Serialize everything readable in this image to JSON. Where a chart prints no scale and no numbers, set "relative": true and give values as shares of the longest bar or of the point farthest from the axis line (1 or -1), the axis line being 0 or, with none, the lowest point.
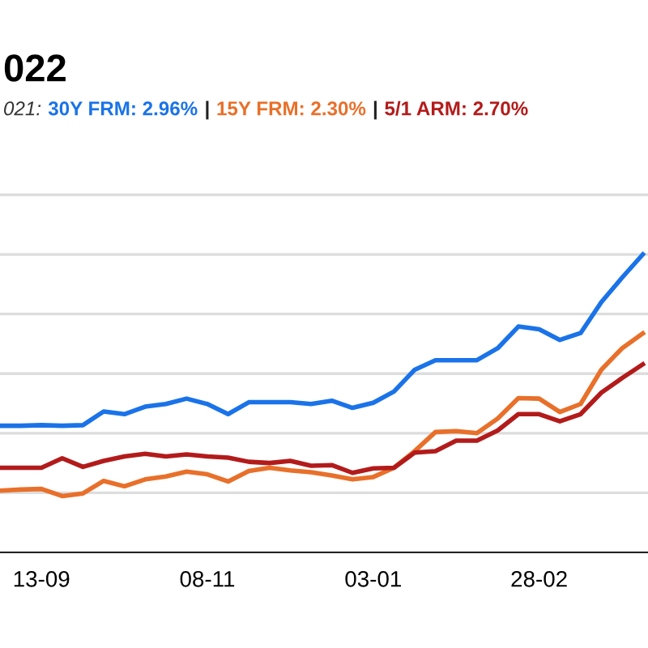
{
  "chart_data": {
    "type": "line",
    "title": "022",
    "subtitle": "021:",
    "categories": [
      null,
      null,
      "13-09",
      null,
      null,
      null,
      null,
      null,
      null,
      null,
      "08-11",
      null,
      null,
      null,
      null,
      null,
      null,
      null,
      "03-01",
      null,
      null,
      null,
      null,
      null,
      null,
      null,
      "28-02",
      null,
      null,
      null,
      null,
      null
    ],
    "annotations": [
      "|",
      "|"
    ],
    "relative": true,
    "grid": "y",
    "legend": "top",
    "marker": "none",
    "line_style": "solid",
    "series": [
      {
        "name": "30Y FRM: 2.96%",
        "color": "#1a73e8",
        "values": [
          0.425,
          0.425,
          0.427,
          0.425,
          0.427,
          0.473,
          0.464,
          0.489,
          0.498,
          0.516,
          0.498,
          0.464,
          0.504,
          0.504,
          0.504,
          0.498,
          0.509,
          0.485,
          0.502,
          0.54,
          0.613,
          0.645,
          0.645,
          0.645,
          0.685,
          0.758,
          0.749,
          0.713,
          0.736,
          0.84,
          0.922,
          1
        ]
      },
      {
        "name": "15Y FRM: 2.30%",
        "color": "#e8702a",
        "values": [
          0.207,
          0.211,
          0.213,
          0.189,
          0.198,
          0.24,
          0.222,
          0.245,
          0.255,
          0.271,
          0.262,
          0.238,
          0.273,
          0.284,
          0.275,
          0.269,
          0.258,
          0.245,
          0.253,
          0.284,
          0.34,
          0.404,
          0.407,
          0.4,
          0.449,
          0.518,
          0.516,
          0.471,
          0.498,
          0.613,
          0.685,
          0.735
        ]
      },
      {
        "name": "5/1 ARM: 2.70%",
        "color": "#b31b1b",
        "values": [
          0.284,
          0.284,
          0.284,
          0.316,
          0.287,
          0.307,
          0.322,
          0.331,
          0.322,
          0.329,
          0.322,
          0.318,
          0.304,
          0.3,
          0.307,
          0.291,
          0.293,
          0.267,
          0.282,
          0.284,
          0.335,
          0.34,
          0.375,
          0.375,
          0.409,
          0.464,
          0.464,
          0.44,
          0.464,
          0.536,
          0.585,
          0.631
        ]
      }
    ]
  }
}
